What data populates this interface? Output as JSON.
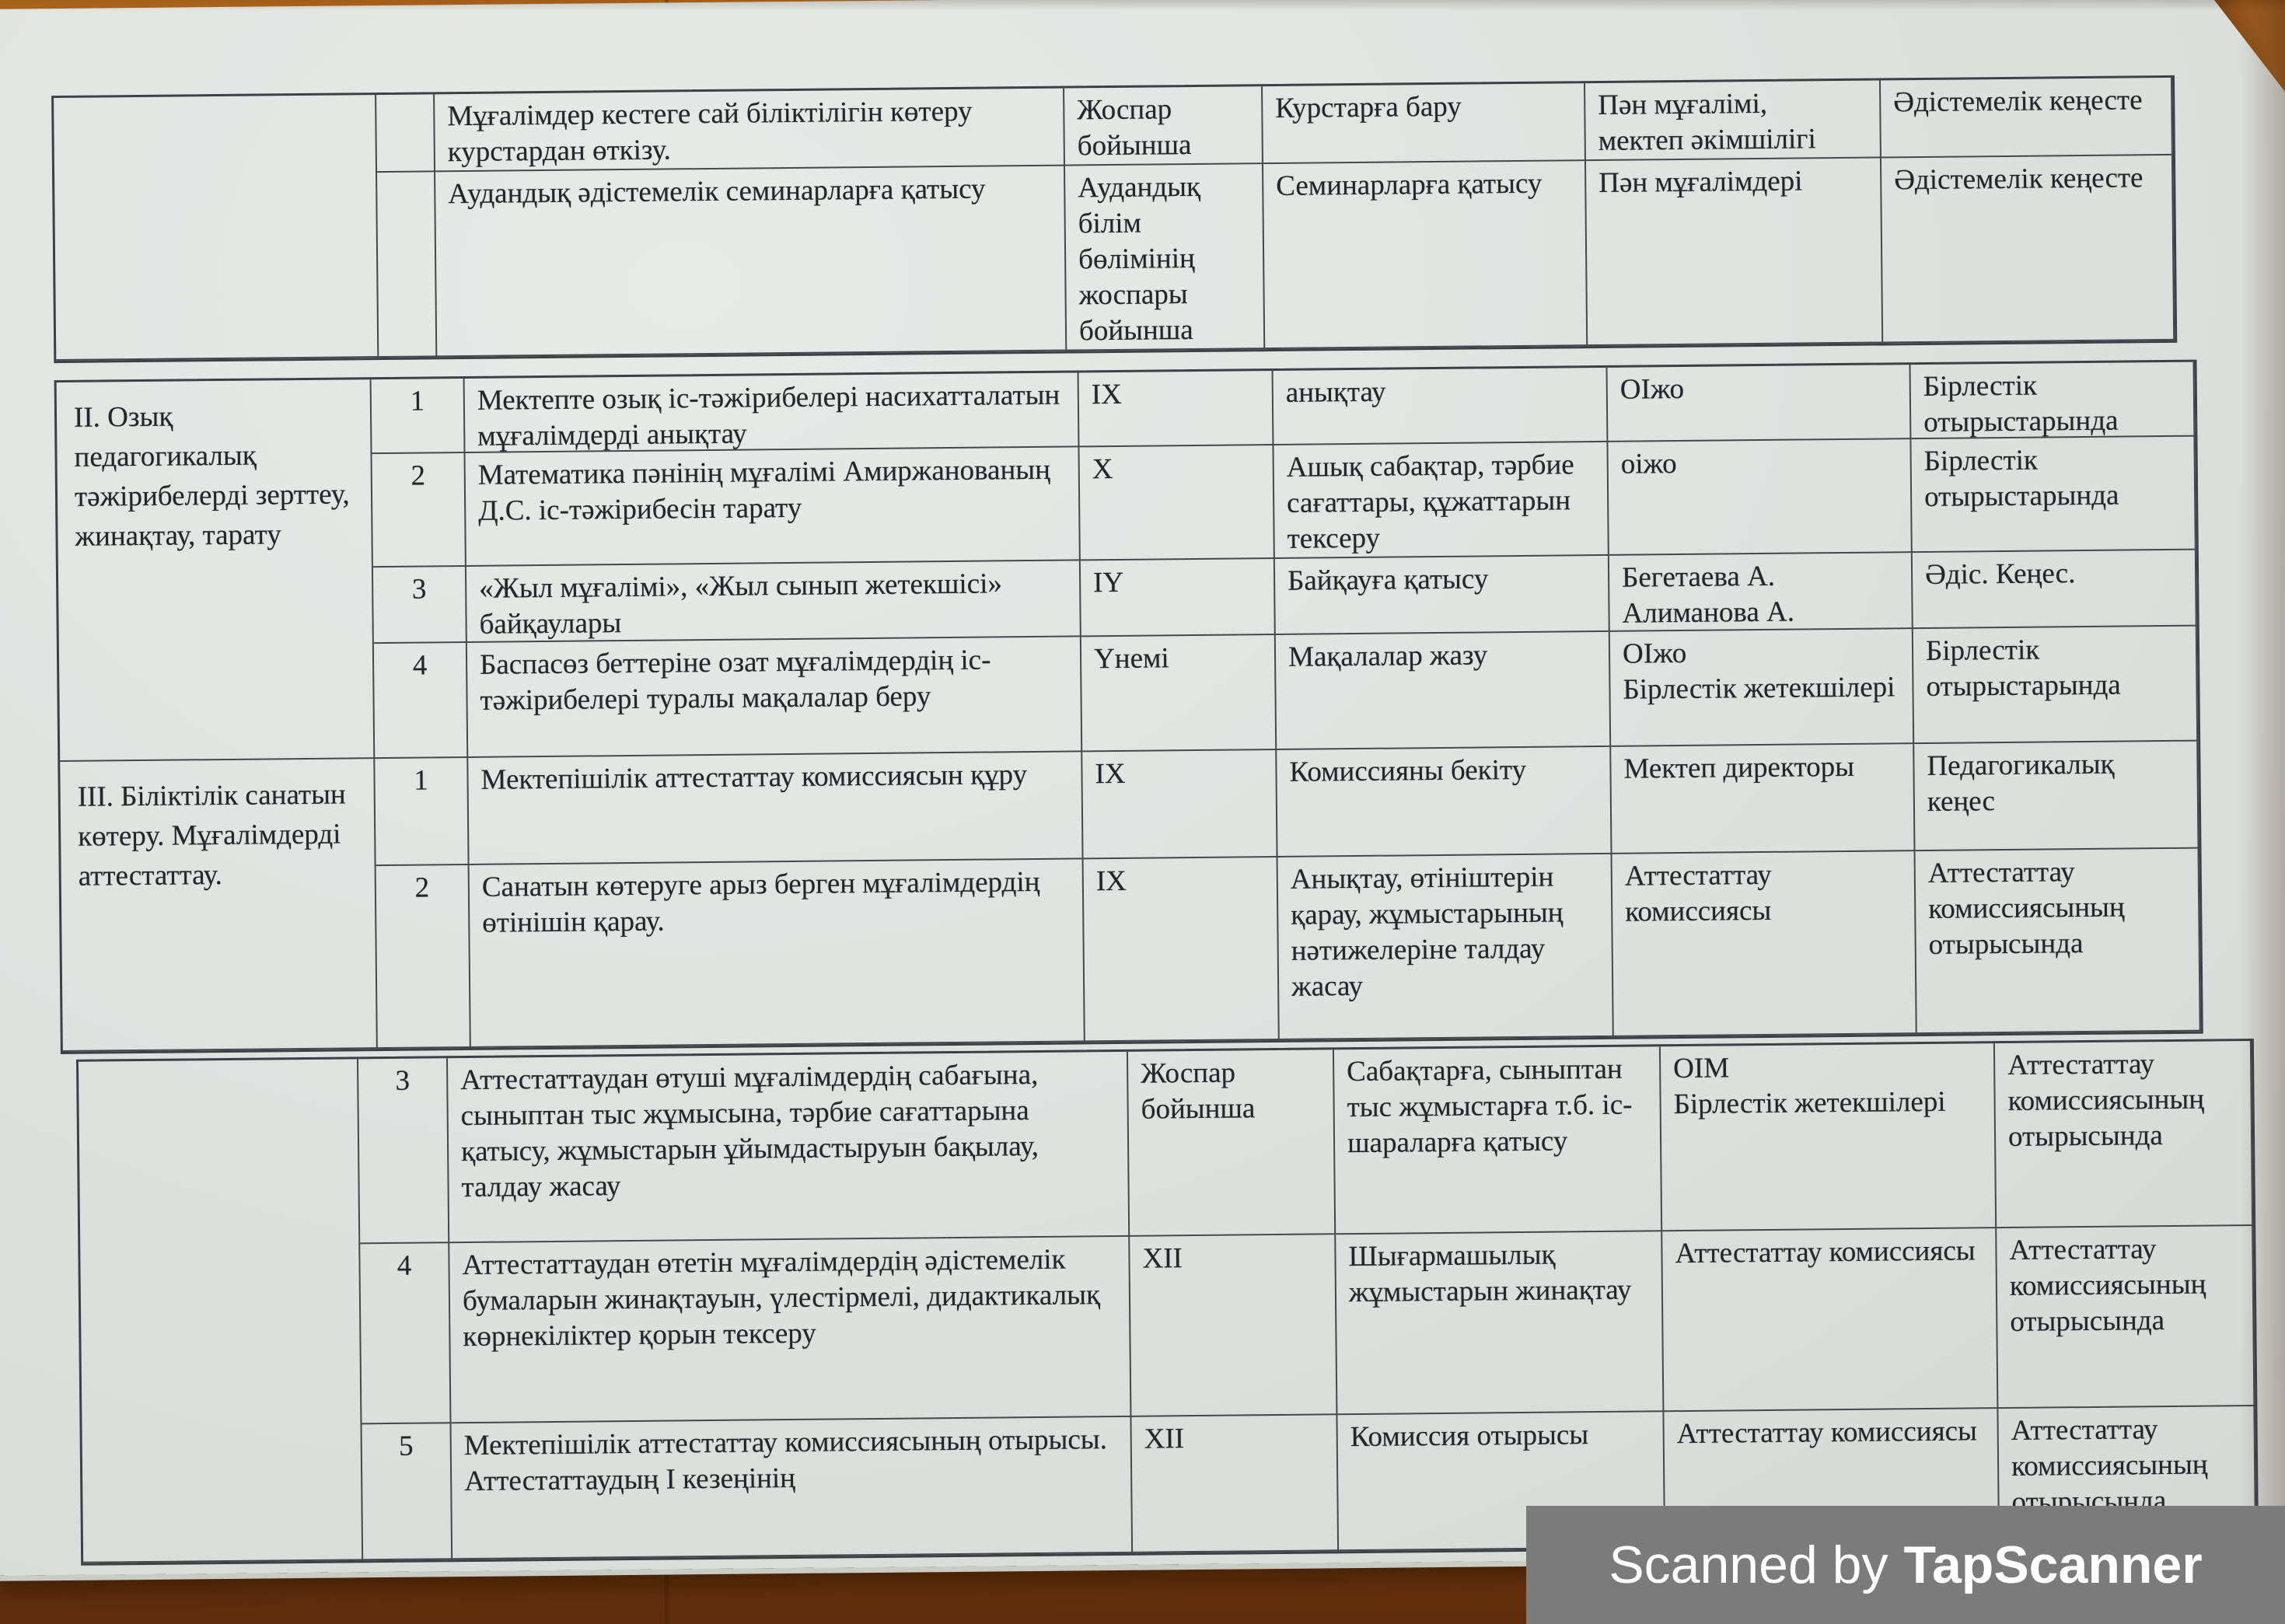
{
  "document": {
    "language": "Kazakh",
    "kind": "scanned school methodical work plan (table fragment)",
    "tables": [
      {
        "name": "top",
        "groups": [
          {
            "label": "",
            "rows": [
              {
                "num": "",
                "task": "Мұғалімдер кестеге сай біліктілігін көтеру курстардан өткізу.",
                "time": "Жоспар бойынша",
                "form": "Курстарға бару",
                "resp": "Пән мұғалімі,\nмектеп әкімшілігі",
                "where": "Әдістемелік кеңесте"
              },
              {
                "num": "",
                "task": "Аудандық әдістемелік семинарларға қатысу",
                "time": "Аудандық білім бөлімінің жоспары бойынша",
                "form": "Семинарларға қатысу",
                "resp": "Пән мұғалімдері",
                "where": "Әдістемелік кеңесте"
              }
            ]
          }
        ]
      },
      {
        "name": "middle",
        "groups": [
          {
            "label": "II. Озық педагогикалық тәжірибелерді зерттеу, жинақтау, тарату",
            "rows": [
              {
                "num": "1",
                "task": "Мектепте озық іс-тәжірибелері насихатталатын мұғалімдерді анықтау",
                "time": "IX",
                "form": "анықтау",
                "resp": "ОІжо",
                "where": "Бірлестік отырыстарында"
              },
              {
                "num": "2",
                "task": "Математика  пәнінің мұғалімі Амиржанованың Д.С. іс-тәжірибесін тарату",
                "time": "X",
                "form": "Ашық сабақтар, тәрбие сағаттары, құжаттарын тексеру",
                "resp": "оіжо",
                "where": "Бірлестік отырыстарында"
              },
              {
                "num": "3",
                "task": "«Жыл мұғалімі», «Жыл сынып жетекшісі» байқаулары",
                "time": "IY",
                "form": "Байқауға қатысу",
                "resp": "Бегетаева А.\nАлиманова А.",
                "where": "Әдіс. Кеңес."
              },
              {
                "num": "4",
                "task": "Баспасөз беттеріне озат мұғалімдердің іс-тәжірибелері туралы мақалалар беру",
                "time": "Үнемі",
                "form": "Мақалалар жазу",
                "resp": "ОІжо\nБірлестік жетекшілері",
                "where": "Бірлестік отырыстарында"
              }
            ]
          },
          {
            "label": "III. Біліктілік санатын көтеру. Мұғалімдерді аттестаттау.",
            "rows": [
              {
                "num": "1",
                "task": "Мектепішілік аттестаттау комиссиясын құру",
                "time": "IX",
                "form": "Комиссияны бекіту",
                "resp": "Мектеп директоры",
                "where": "Педагогикалық кеңес"
              },
              {
                "num": "2",
                "task": "Санатын көтеруге арыз берген мұғалімдердің өтінішін қарау.",
                "time": "IX",
                "form": "Анықтау, өтініштерін қарау, жұмыстарының нәтижелеріне талдау жасау",
                "resp": "Аттестаттау комиссиясы",
                "where": "Аттестаттау комиссиясының отырысында"
              }
            ]
          }
        ]
      },
      {
        "name": "bottom",
        "groups": [
          {
            "label": "",
            "rows": [
              {
                "num": "3",
                "task": "Аттестаттаудан өтуші мұғалімдердің сабағына, сыныптан тыс жұмысына, тәрбие сағаттарына қатысу, жұмыстарын ұйымдастыруын бақылау, талдау жасау",
                "time": "Жоспар бойынша",
                "form": "Сабақтарға, сыныптан тыс жұмыстарға т.б. іс-шараларға қатысу",
                "resp": "ОІМ\nБірлестік жетекшілері",
                "where": "Аттестаттау комиссиясының отырысында"
              },
              {
                "num": "4",
                "task": "Аттестаттаудан өтетін мұғалімдердің әдістемелік бумаларын жинақтауын, үлестірмелі, дидактикалық көрнекіліктер қорын тексеру",
                "time": "XII",
                "form": "Шығармашылық жұмыстарын жинақтау",
                "resp": "Аттестаттау комиссиясы",
                "where": "Аттестаттау комиссиясының отырысында"
              },
              {
                "num": "5",
                "task": "Мектепішілік аттестаттау комиссиясының отырысы. Аттестаттаудың I кезеңінің",
                "time": "XII",
                "form": "Комиссия отырысы",
                "resp": "Аттестаттау комиссиясы",
                "where": "Аттестаттау комиссиясының отырысында"
              }
            ]
          }
        ]
      }
    ]
  },
  "watermark": {
    "prefix": "Scanned by",
    "brand": "TapScanner"
  },
  "colors": {
    "paper": "#dfe3e0",
    "wood_top": "#aa5d1c",
    "wood_bottom": "#5e2d0c",
    "table_border": "#45484d",
    "ink": "#24262b",
    "watermark_bar": "#7b7b7b",
    "watermark_text": "#ffffff"
  }
}
